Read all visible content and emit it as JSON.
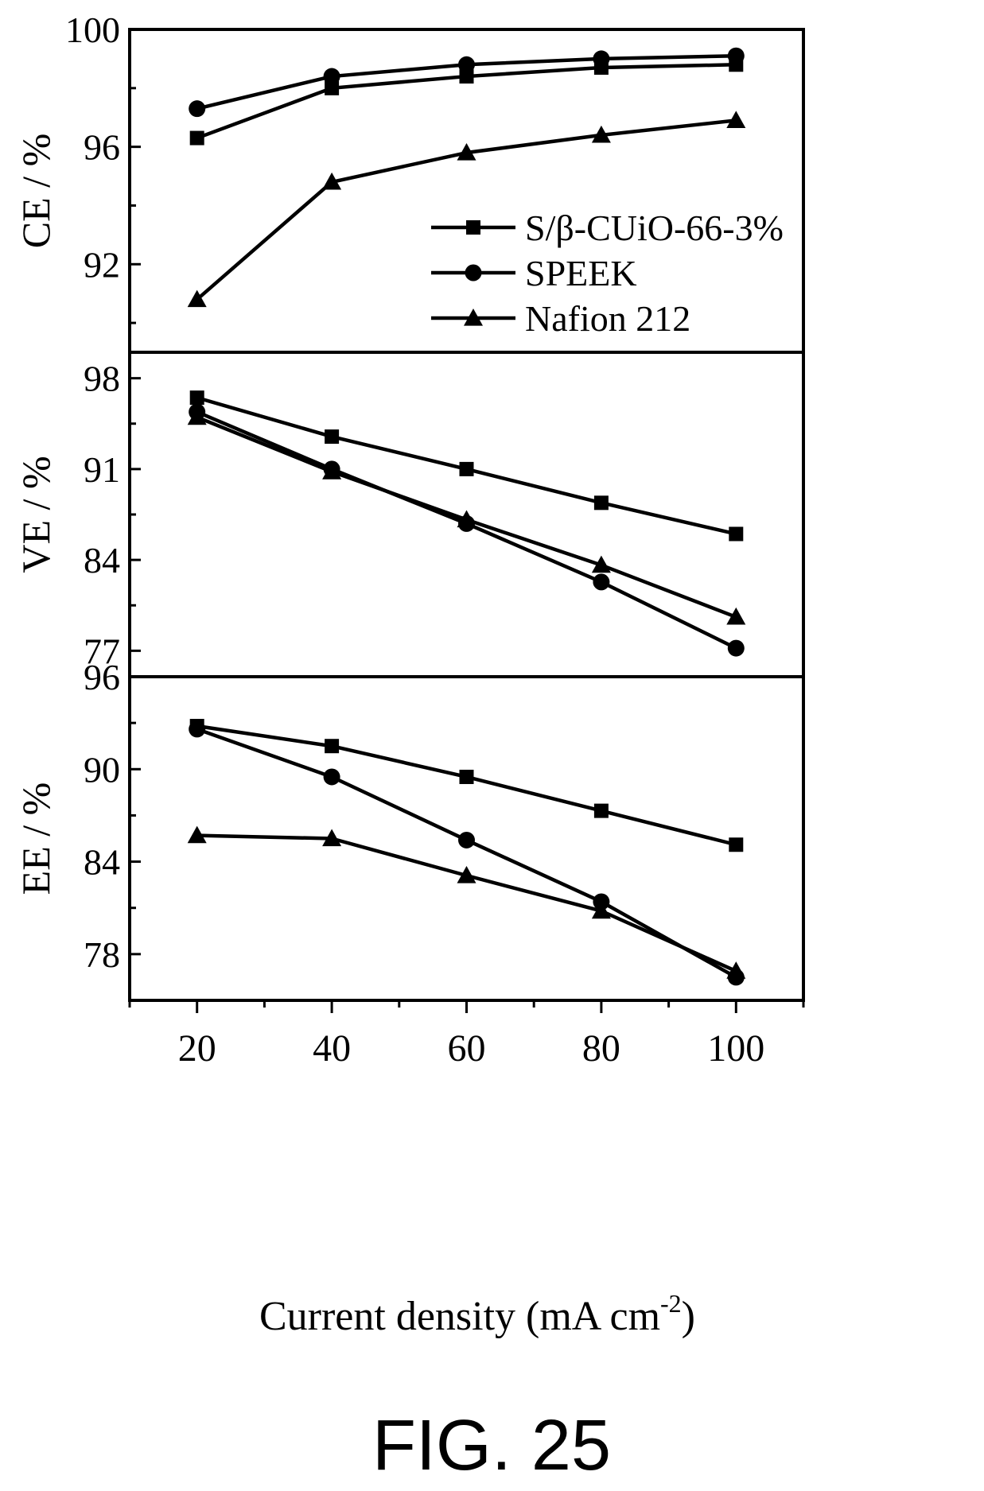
{
  "figure_label": "FIG. 25",
  "chart_data": {
    "type": "line",
    "x": [
      20,
      40,
      60,
      80,
      100
    ],
    "xlabel": "Current density (mA cm",
    "xlabel_sup": "-2",
    "xlabel_end": ")",
    "xlim": [
      10,
      110
    ],
    "xticks": [
      20,
      40,
      60,
      80,
      100
    ],
    "legend": {
      "placement": "inside top panel, lower-right"
    },
    "panels": [
      {
        "key": "ce",
        "ylabel": "CE / %",
        "ylim": [
          89,
          100
        ],
        "yticks": [
          92,
          96,
          100
        ],
        "series": [
          {
            "name": "S/β-CUiO-66-3%",
            "marker": "square",
            "values": [
              96.3,
              98.0,
              98.4,
              98.7,
              98.8
            ]
          },
          {
            "name": "SPEEK",
            "marker": "circle",
            "values": [
              97.3,
              98.4,
              98.8,
              99.0,
              99.1
            ]
          },
          {
            "name": "Nafion 212",
            "marker": "triangle",
            "values": [
              90.8,
              94.8,
              95.8,
              96.4,
              96.9
            ]
          }
        ]
      },
      {
        "key": "ve",
        "ylabel": "VE / %",
        "ylim": [
          75,
          100
        ],
        "yticks": [
          77,
          84,
          91,
          98
        ],
        "series": [
          {
            "name": "S/β-CUiO-66-3%",
            "marker": "square",
            "values": [
              96.5,
              93.5,
              91.0,
              88.4,
              86.0
            ]
          },
          {
            "name": "SPEEK",
            "marker": "circle",
            "values": [
              95.4,
              91.0,
              86.8,
              82.3,
              77.2
            ]
          },
          {
            "name": "Nafion 212",
            "marker": "triangle",
            "values": [
              95.0,
              90.8,
              87.1,
              83.6,
              79.6
            ]
          }
        ]
      },
      {
        "key": "ee",
        "ylabel": "EE / %",
        "ylim": [
          75,
          96
        ],
        "yticks": [
          78,
          84,
          90,
          96
        ],
        "series": [
          {
            "name": "S/β-CUiO-66-3%",
            "marker": "square",
            "values": [
              92.8,
              91.5,
              89.5,
              87.3,
              85.1
            ]
          },
          {
            "name": "SPEEK",
            "marker": "circle",
            "values": [
              92.6,
              89.5,
              85.4,
              81.4,
              76.5
            ]
          },
          {
            "name": "Nafion 212",
            "marker": "triangle",
            "values": [
              85.7,
              85.5,
              83.1,
              80.8,
              76.9
            ]
          }
        ]
      }
    ]
  }
}
